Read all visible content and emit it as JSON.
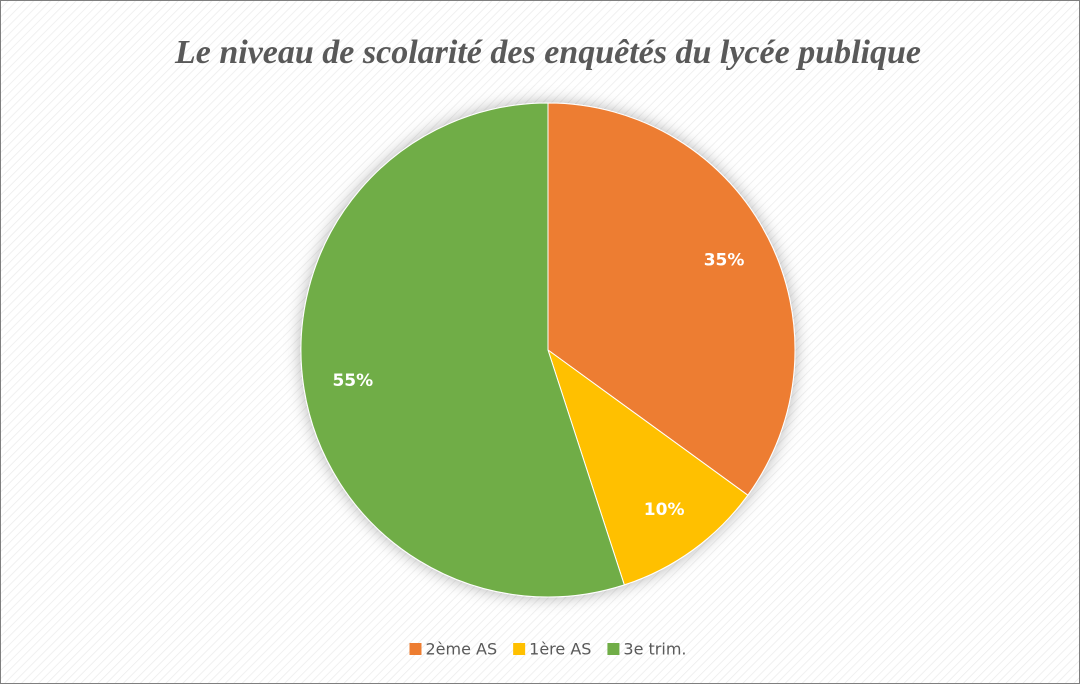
{
  "chart_data": {
    "type": "pie",
    "title": "Le niveau de scolarité des enquêtés du lycée publique",
    "categories": [
      "2ème AS",
      "1ère AS",
      "3e trim."
    ],
    "values": [
      35,
      10,
      55
    ],
    "value_labels": [
      "35%",
      "10%",
      "55%"
    ],
    "colors": [
      "#ED7D31",
      "#FFC000",
      "#70AD47"
    ],
    "legend": "bottom"
  }
}
